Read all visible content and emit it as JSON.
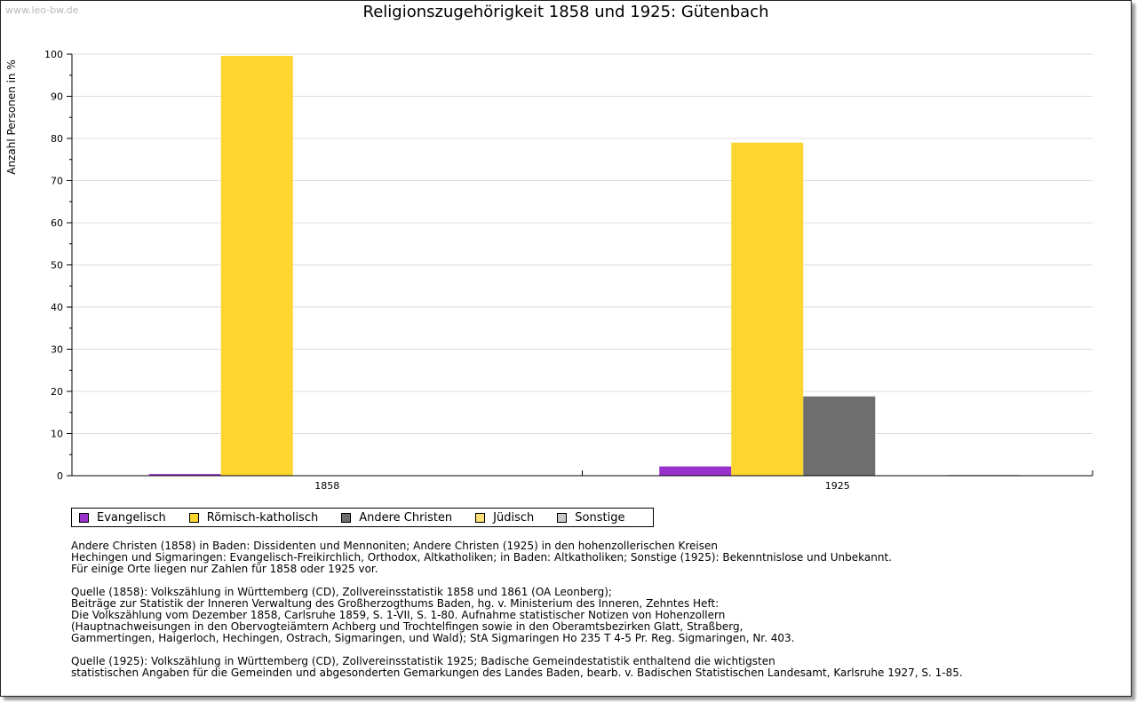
{
  "watermark": "www.leo-bw.de",
  "colors": {
    "evangelisch": "#9932cc",
    "roemisch": "#fdd52f",
    "andere": "#6e6e6e",
    "juedisch": "#fde172",
    "sonstige": "#c8c8c8"
  },
  "chart_data": {
    "type": "bar",
    "title": "Religionszugehörigkeit 1858 und 1925: Gütenbach",
    "xlabel": "",
    "ylabel": "Anzahl Personen in %",
    "ylim": [
      0,
      100
    ],
    "yticks": [
      0,
      10,
      20,
      30,
      40,
      50,
      60,
      70,
      80,
      90,
      100
    ],
    "categories": [
      "1858",
      "1925"
    ],
    "grid": true,
    "legend_position": "bottom",
    "series": [
      {
        "name": "Evangelisch",
        "color": "#9932cc",
        "values": [
          0.4,
          2.2
        ]
      },
      {
        "name": "Römisch-katholisch",
        "color": "#fdd52f",
        "values": [
          99.6,
          79.0
        ]
      },
      {
        "name": "Andere Christen",
        "color": "#6e6e6e",
        "values": [
          0.0,
          18.8
        ]
      },
      {
        "name": "Jüdisch",
        "color": "#fde172",
        "values": [
          0.0,
          0.0
        ]
      },
      {
        "name": "Sonstige",
        "color": "#c8c8c8",
        "values": [
          0.0,
          0.1
        ]
      }
    ]
  },
  "notes": [
    "Andere Christen (1858) in Baden: Dissidenten und Mennoniten; Andere Christen (1925) in den hohenzollerischen Kreisen",
    "Hechingen und Sigmaringen: Evangelisch-Freikirchlich, Orthodox, Altkatholiken; in Baden: Altkatholiken; Sonstige (1925): Bekenntnislose und Unbekannt.",
    "Für einige Orte liegen nur Zahlen für 1858 oder 1925 vor.",
    "",
    "Quelle (1858): Volkszählung in Württemberg (CD), Zollvereinsstatistik 1858 und 1861 (OA Leonberg);",
    "Beiträge zur Statistik der Inneren Verwaltung des Großherzogthums Baden, hg. v. Ministerium des Inneren, Zehntes Heft:",
    "Die Volkszählung vom Dezember 1858, Carlsruhe 1859, S. 1-VII, S. 1-80. Aufnahme statistischer Notizen von Hohenzollern",
    "(Hauptnachweisungen in den Obervogteiämtern Achberg und Trochtelfingen sowie in den Oberamtsbezirken Glatt, Straßberg,",
    "Gammertingen, Haigerloch, Hechingen, Ostrach, Sigmaringen, und Wald); StA Sigmaringen Ho 235 T 4-5 Pr. Reg. Sigmaringen, Nr. 403.",
    "",
    "Quelle (1925): Volkszählung in Württemberg (CD), Zollvereinsstatistik 1925; Badische Gemeindestatistik enthaltend die wichtigsten",
    "statistischen Angaben für die Gemeinden und abgesonderten Gemarkungen des Landes Baden, bearb. v. Badischen Statistischen Landesamt, Karlsruhe 1927, S. 1-85."
  ]
}
